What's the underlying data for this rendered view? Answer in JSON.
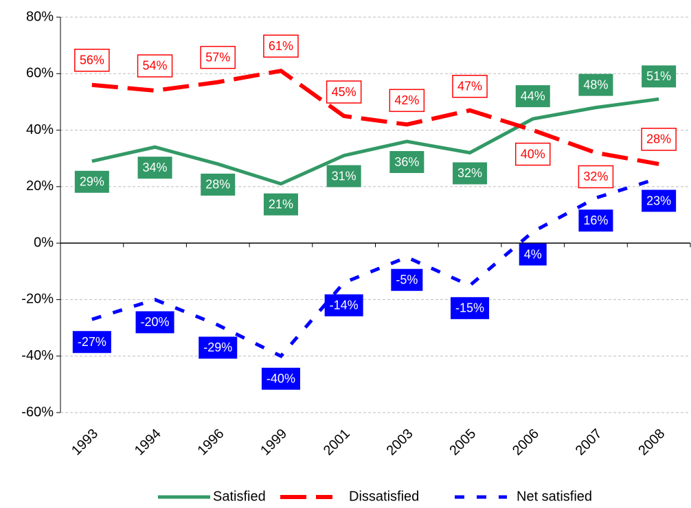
{
  "chart_data": {
    "type": "line",
    "categories": [
      "1993",
      "1994",
      "1996",
      "1999",
      "2001",
      "2003",
      "2005",
      "2006",
      "2007",
      "2008"
    ],
    "series": [
      {
        "name": "Satisfied",
        "color": "#339966",
        "values": [
          29,
          34,
          28,
          21,
          31,
          36,
          32,
          44,
          48,
          51
        ],
        "value_labels": [
          "29%",
          "34%",
          "28%",
          "21%",
          "31%",
          "36%",
          "32%",
          "44%",
          "48%",
          "51%"
        ]
      },
      {
        "name": "Dissatisfied",
        "color": "#ff0000",
        "values": [
          56,
          54,
          57,
          61,
          45,
          42,
          47,
          40,
          32,
          28
        ],
        "value_labels": [
          "56%",
          "54%",
          "57%",
          "61%",
          "45%",
          "42%",
          "47%",
          "40%",
          "32%",
          "28%"
        ]
      },
      {
        "name": "Net satisfied",
        "color": "#0000ff",
        "values": [
          -27,
          -20,
          -29,
          -40,
          -14,
          -5,
          -15,
          4,
          16,
          23
        ],
        "value_labels": [
          "-27%",
          "-20%",
          "-29%",
          "-40%",
          "-14%",
          "-5%",
          "-15%",
          "4%",
          "16%",
          "23%"
        ]
      }
    ],
    "ylim": [
      -60,
      80
    ],
    "yticks": [
      {
        "value": -60,
        "label": "-60%"
      },
      {
        "value": -40,
        "label": "-40%"
      },
      {
        "value": -20,
        "label": "-20%"
      },
      {
        "value": 0,
        "label": "0%"
      },
      {
        "value": 20,
        "label": "20%"
      },
      {
        "value": 40,
        "label": "40%"
      },
      {
        "value": 60,
        "label": "60%"
      },
      {
        "value": 80,
        "label": "80%"
      }
    ],
    "grid": true,
    "legend": "bottom"
  }
}
